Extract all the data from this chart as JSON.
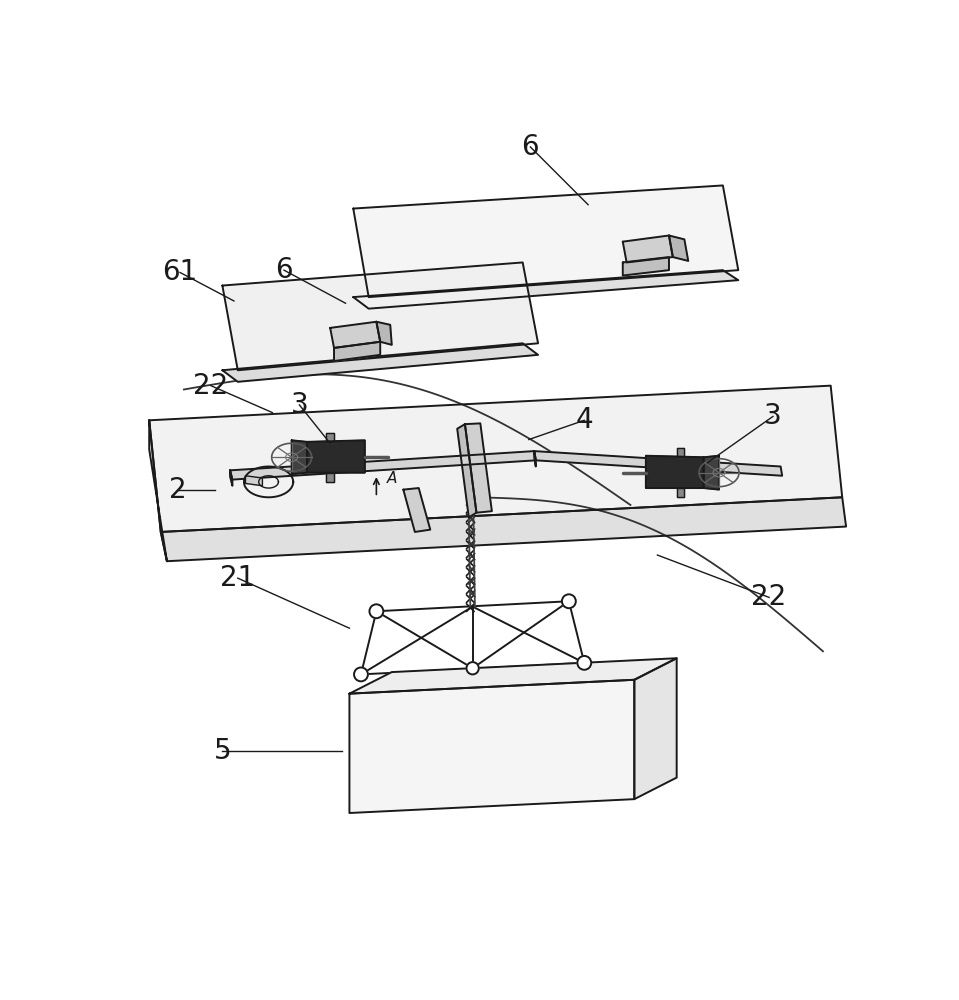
{
  "bg_color": "#ffffff",
  "line_color": "#1a1a1a",
  "label_color": "#1a1a1a",
  "lw": 1.4
}
